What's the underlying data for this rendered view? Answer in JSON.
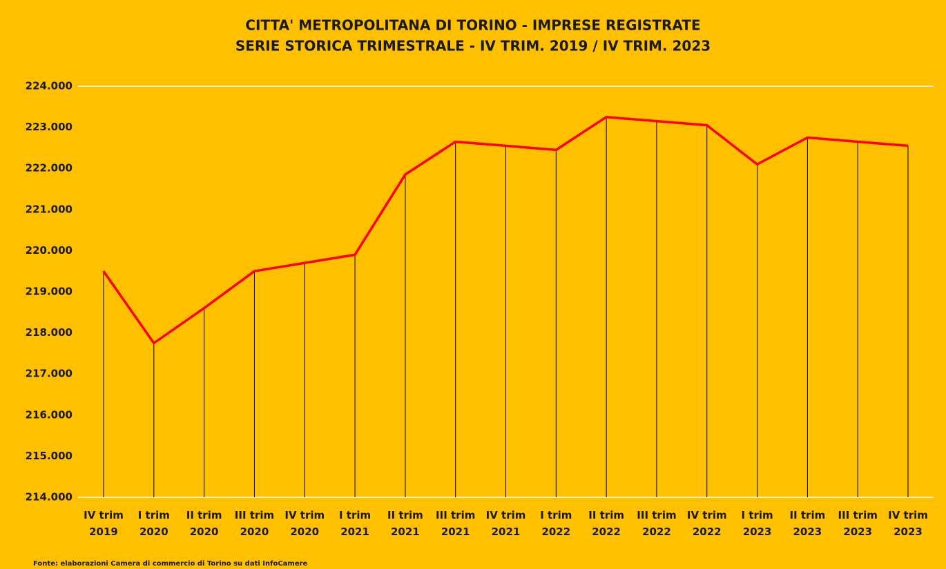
{
  "chart_data": {
    "type": "line",
    "title": [
      "CITTA' METROPOLITANA DI TORINO - IMPRESE REGISTRATE",
      "SERIE STORICA TRIMESTRALE - IV TRIM. 2019 / IV TRIM. 2023"
    ],
    "categories": [
      "IV trim\n2019",
      "I trim\n2020",
      "II trim\n2020",
      "III trim\n2020",
      "IV trim\n2020",
      "I trim\n2021",
      "II trim\n2021",
      "III trim\n2021",
      "IV trim\n2021",
      "I trim\n2022",
      "II trim\n2022",
      "III trim\n2022",
      "IV trim\n2022",
      "I trim\n2023",
      "II trim\n2023",
      "III trim\n2023",
      "IV trim\n2023"
    ],
    "values": [
      219500,
      217750,
      218600,
      219500,
      219700,
      219900,
      221850,
      222650,
      222550,
      222450,
      223250,
      223150,
      223050,
      222100,
      222750,
      222650,
      222550
    ],
    "color": "#ff0000",
    "drop_line_color": "#000000",
    "ylim": [
      214000,
      224000
    ],
    "yticks": [
      {
        "value": 214000,
        "label": "214.000"
      },
      {
        "value": 215000,
        "label": "215.000"
      },
      {
        "value": 216000,
        "label": "216.000"
      },
      {
        "value": 217000,
        "label": "217.000"
      },
      {
        "value": 218000,
        "label": "218.000"
      },
      {
        "value": 219000,
        "label": "219.000"
      },
      {
        "value": 220000,
        "label": "220.000"
      },
      {
        "value": 221000,
        "label": "221.000"
      },
      {
        "value": 222000,
        "label": "222.000"
      },
      {
        "value": 223000,
        "label": "223.000"
      },
      {
        "value": 224000,
        "label": "224.000"
      }
    ],
    "grid": false,
    "source": "Fonte: elaborazioni Camera di commercio di Torino su dati InfoCamere"
  }
}
